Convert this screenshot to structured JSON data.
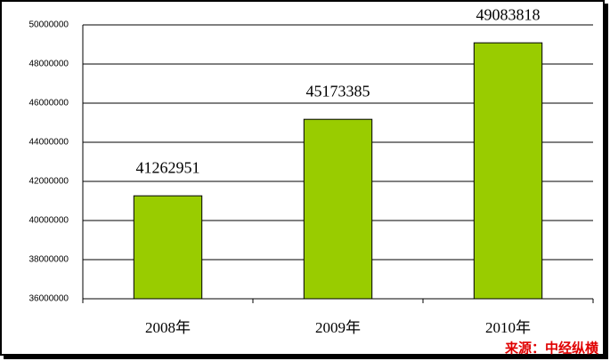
{
  "chart_data": {
    "type": "bar",
    "categories": [
      "2008年",
      "2009年",
      "2010年"
    ],
    "values": [
      41262951,
      45173385,
      49083818
    ],
    "color": "#99cc00",
    "ylim": [
      36000000,
      50000000
    ],
    "yticks": [
      36000000,
      38000000,
      40000000,
      42000000,
      44000000,
      46000000,
      48000000,
      50000000
    ],
    "grid": true,
    "source": "来源：中经纵横"
  }
}
